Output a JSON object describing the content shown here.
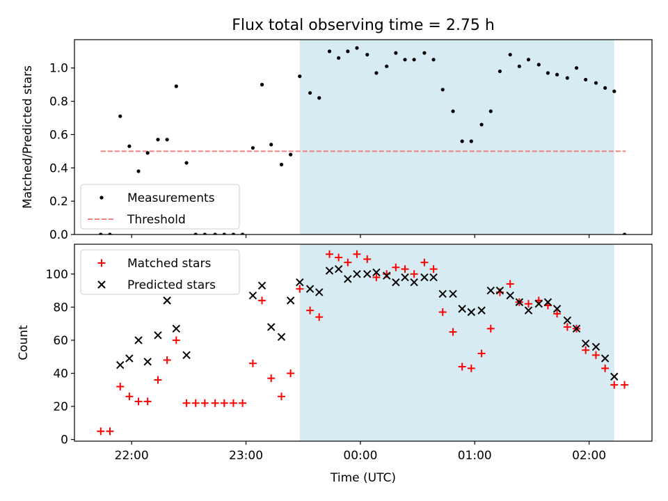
{
  "title": "Flux total observing time = 2.75 h",
  "colors": {
    "shade": "#add8e6",
    "threshold": "#f08080",
    "matched": "#ff0000",
    "predicted": "#000000",
    "measure": "#000000"
  },
  "chart_data": [
    {
      "type": "scatter",
      "panel": "top",
      "ylabel": "Matched/Predicted stars",
      "xlabel": "",
      "ylim": [
        0,
        1.17
      ],
      "xlim_hours": [
        -2.5,
        2.55
      ],
      "yticks": [
        0.0,
        0.2,
        0.4,
        0.6,
        0.8,
        1.0
      ],
      "ytick_labels": [
        "0.0",
        "0.2",
        "0.4",
        "0.6",
        "0.8",
        "1.0"
      ],
      "shaded_region_hours": [
        -0.53,
        2.22
      ],
      "threshold": {
        "value": 0.5,
        "x_hours": [
          -2.27,
          2.32
        ]
      },
      "legend": {
        "position": "lower-left",
        "entries": [
          "Measurements",
          "Threshold"
        ]
      },
      "series": [
        {
          "name": "Measurements",
          "x": [
            -2.27,
            -2.19,
            -2.1,
            -2.02,
            -1.94,
            -1.86,
            -1.77,
            -1.69,
            -1.61,
            -1.52,
            -1.44,
            -1.36,
            -1.27,
            -1.19,
            -1.11,
            -1.03,
            -0.94,
            -0.86,
            -0.78,
            -0.69,
            -0.61,
            -0.53,
            -0.44,
            -0.36,
            -0.27,
            -0.19,
            -0.11,
            -0.03,
            0.06,
            0.14,
            0.23,
            0.31,
            0.39,
            0.47,
            0.56,
            0.64,
            0.72,
            0.81,
            0.89,
            0.97,
            1.06,
            1.14,
            1.22,
            1.31,
            1.39,
            1.47,
            1.56,
            1.64,
            1.72,
            1.81,
            1.89,
            1.97,
            2.06,
            2.14,
            2.22,
            2.31
          ],
          "y": [
            0.0,
            0.0,
            0.71,
            0.53,
            0.38,
            0.49,
            0.57,
            0.57,
            0.89,
            0.43,
            0.0,
            0.0,
            0.0,
            0.0,
            0.0,
            0.0,
            0.52,
            0.9,
            0.54,
            0.42,
            0.48,
            0.95,
            0.85,
            0.82,
            1.1,
            1.06,
            1.1,
            1.12,
            1.08,
            0.97,
            1.01,
            1.09,
            1.05,
            1.05,
            1.09,
            1.05,
            0.87,
            0.74,
            0.56,
            0.56,
            0.66,
            0.74,
            0.98,
            1.08,
            1.01,
            1.05,
            1.02,
            0.97,
            0.96,
            0.94,
            1.0,
            0.93,
            0.91,
            0.88,
            0.86,
            0.0
          ]
        }
      ]
    },
    {
      "type": "scatter",
      "panel": "bottom",
      "ylabel": "Count",
      "xlabel": "Time (UTC)",
      "ylim": [
        -1,
        118
      ],
      "xlim_hours": [
        -2.5,
        2.55
      ],
      "yticks": [
        0,
        20,
        40,
        60,
        80,
        100
      ],
      "ytick_labels": [
        "0",
        "20",
        "40",
        "60",
        "80",
        "100"
      ],
      "xticks_hours": [
        -2,
        -1,
        0,
        1,
        2
      ],
      "xtick_labels": [
        "22:00",
        "23:00",
        "00:00",
        "01:00",
        "02:00"
      ],
      "shaded_region_hours": [
        -0.53,
        2.22
      ],
      "legend": {
        "position": "upper-left",
        "entries": [
          "Matched stars",
          "Predicted stars"
        ]
      },
      "series": [
        {
          "name": "Matched stars",
          "marker": "+",
          "x": [
            -2.27,
            -2.19,
            -2.1,
            -2.02,
            -1.94,
            -1.86,
            -1.77,
            -1.69,
            -1.61,
            -1.52,
            -1.44,
            -1.36,
            -1.27,
            -1.19,
            -1.11,
            -1.03,
            -0.94,
            -0.86,
            -0.78,
            -0.69,
            -0.61,
            -0.53,
            -0.44,
            -0.36,
            -0.27,
            -0.19,
            -0.11,
            -0.03,
            0.06,
            0.14,
            0.23,
            0.31,
            0.39,
            0.47,
            0.56,
            0.64,
            0.72,
            0.81,
            0.89,
            0.97,
            1.06,
            1.14,
            1.22,
            1.31,
            1.39,
            1.47,
            1.56,
            1.64,
            1.72,
            1.81,
            1.89,
            1.97,
            2.06,
            2.14,
            2.22,
            2.31
          ],
          "y": [
            5,
            5,
            32,
            26,
            23,
            23,
            36,
            48,
            60,
            22,
            22,
            22,
            22,
            22,
            22,
            22,
            46,
            84,
            37,
            26,
            40,
            91,
            78,
            74,
            112,
            110,
            107,
            112,
            109,
            98,
            100,
            104,
            103,
            100,
            107,
            103,
            77,
            65,
            44,
            43,
            52,
            67,
            89,
            94,
            83,
            82,
            84,
            81,
            76,
            68,
            67,
            54,
            51,
            43,
            33,
            33
          ]
        },
        {
          "name": "Predicted stars",
          "marker": "x",
          "x": [
            -2.1,
            -2.02,
            -1.94,
            -1.86,
            -1.77,
            -1.69,
            -1.61,
            -1.52,
            -0.94,
            -0.86,
            -0.78,
            -0.69,
            -0.61,
            -0.53,
            -0.44,
            -0.36,
            -0.27,
            -0.19,
            -0.11,
            -0.03,
            0.06,
            0.14,
            0.23,
            0.31,
            0.39,
            0.47,
            0.56,
            0.64,
            0.72,
            0.81,
            0.89,
            0.97,
            1.06,
            1.14,
            1.22,
            1.31,
            1.39,
            1.47,
            1.56,
            1.64,
            1.72,
            1.81,
            1.89,
            1.97,
            2.06,
            2.14,
            2.22
          ],
          "y": [
            45,
            49,
            60,
            47,
            63,
            84,
            67,
            51,
            87,
            93,
            68,
            62,
            84,
            95,
            91,
            89,
            102,
            103,
            97,
            100,
            100,
            101,
            99,
            95,
            98,
            95,
            98,
            98,
            88,
            88,
            79,
            77,
            78,
            90,
            90,
            87,
            83,
            78,
            82,
            83,
            79,
            72,
            67,
            58,
            56,
            49,
            38
          ]
        }
      ]
    }
  ]
}
